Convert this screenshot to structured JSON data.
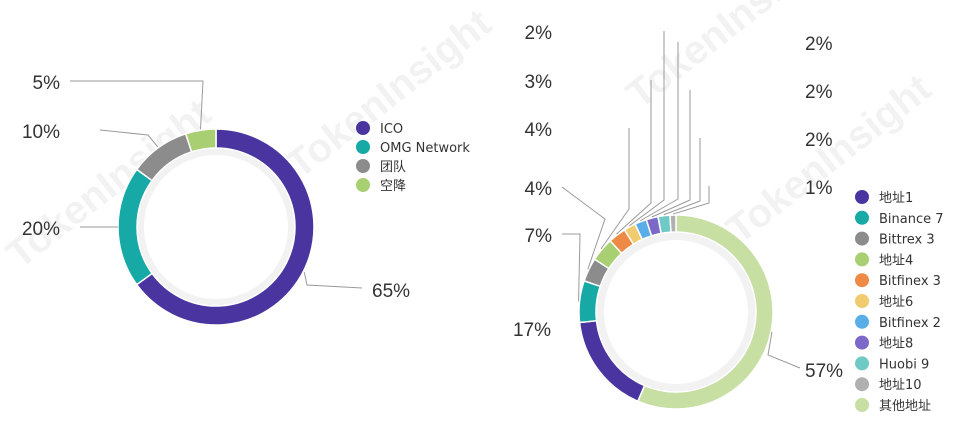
{
  "watermark": "TokenInsight",
  "chart_data": [
    {
      "type": "pie",
      "style": "donut",
      "title": "",
      "series": [
        {
          "name": "ICO",
          "label": "65%",
          "value": 65,
          "color": "#4a35a0"
        },
        {
          "name": "OMG Network",
          "label": "20%",
          "value": 20,
          "color": "#16a9a6"
        },
        {
          "name": "团队",
          "label": "10%",
          "value": 10,
          "color": "#8c8c8c"
        },
        {
          "name": "空降",
          "label": "5%",
          "value": 5,
          "color": "#a8cf72"
        }
      ],
      "legend": "right",
      "start": "top, clockwise"
    },
    {
      "type": "pie",
      "style": "donut",
      "title": "",
      "series": [
        {
          "name": "其他地址",
          "label": "57%",
          "value": 57,
          "color": "#c8dfa3"
        },
        {
          "name": "地址1",
          "label": "17%",
          "value": 17,
          "color": "#4a35a0"
        },
        {
          "name": "Binance 7",
          "label": "7%",
          "value": 7,
          "color": "#16a9a6"
        },
        {
          "name": "Bittrex 3",
          "label": "4%",
          "value": 4,
          "color": "#8c8c8c"
        },
        {
          "name": "地址4",
          "label": "4%",
          "value": 4,
          "color": "#a8cf72"
        },
        {
          "name": "Bitfinex 3",
          "label": "3%",
          "value": 3,
          "color": "#ee8a45"
        },
        {
          "name": "地址6",
          "label": "2%",
          "value": 2,
          "color": "#f1cb70"
        },
        {
          "name": "Bitfinex 2",
          "label": "2%",
          "value": 2,
          "color": "#5aaee8"
        },
        {
          "name": "地址8",
          "label": "2%",
          "value": 2,
          "color": "#7b68c8"
        },
        {
          "name": "Huobi 9",
          "label": "2%",
          "value": 2,
          "color": "#6fcac6"
        },
        {
          "name": "地址10",
          "label": "1%",
          "value": 1,
          "color": "#b0b0b0"
        }
      ],
      "legend_order": [
        "地址1",
        "Binance 7",
        "Bittrex 3",
        "地址4",
        "Bitfinex 3",
        "地址6",
        "Bitfinex 2",
        "地址8",
        "Huobi 9",
        "地址10",
        "其他地址"
      ],
      "legend": "right",
      "start": "top, clockwise"
    }
  ]
}
